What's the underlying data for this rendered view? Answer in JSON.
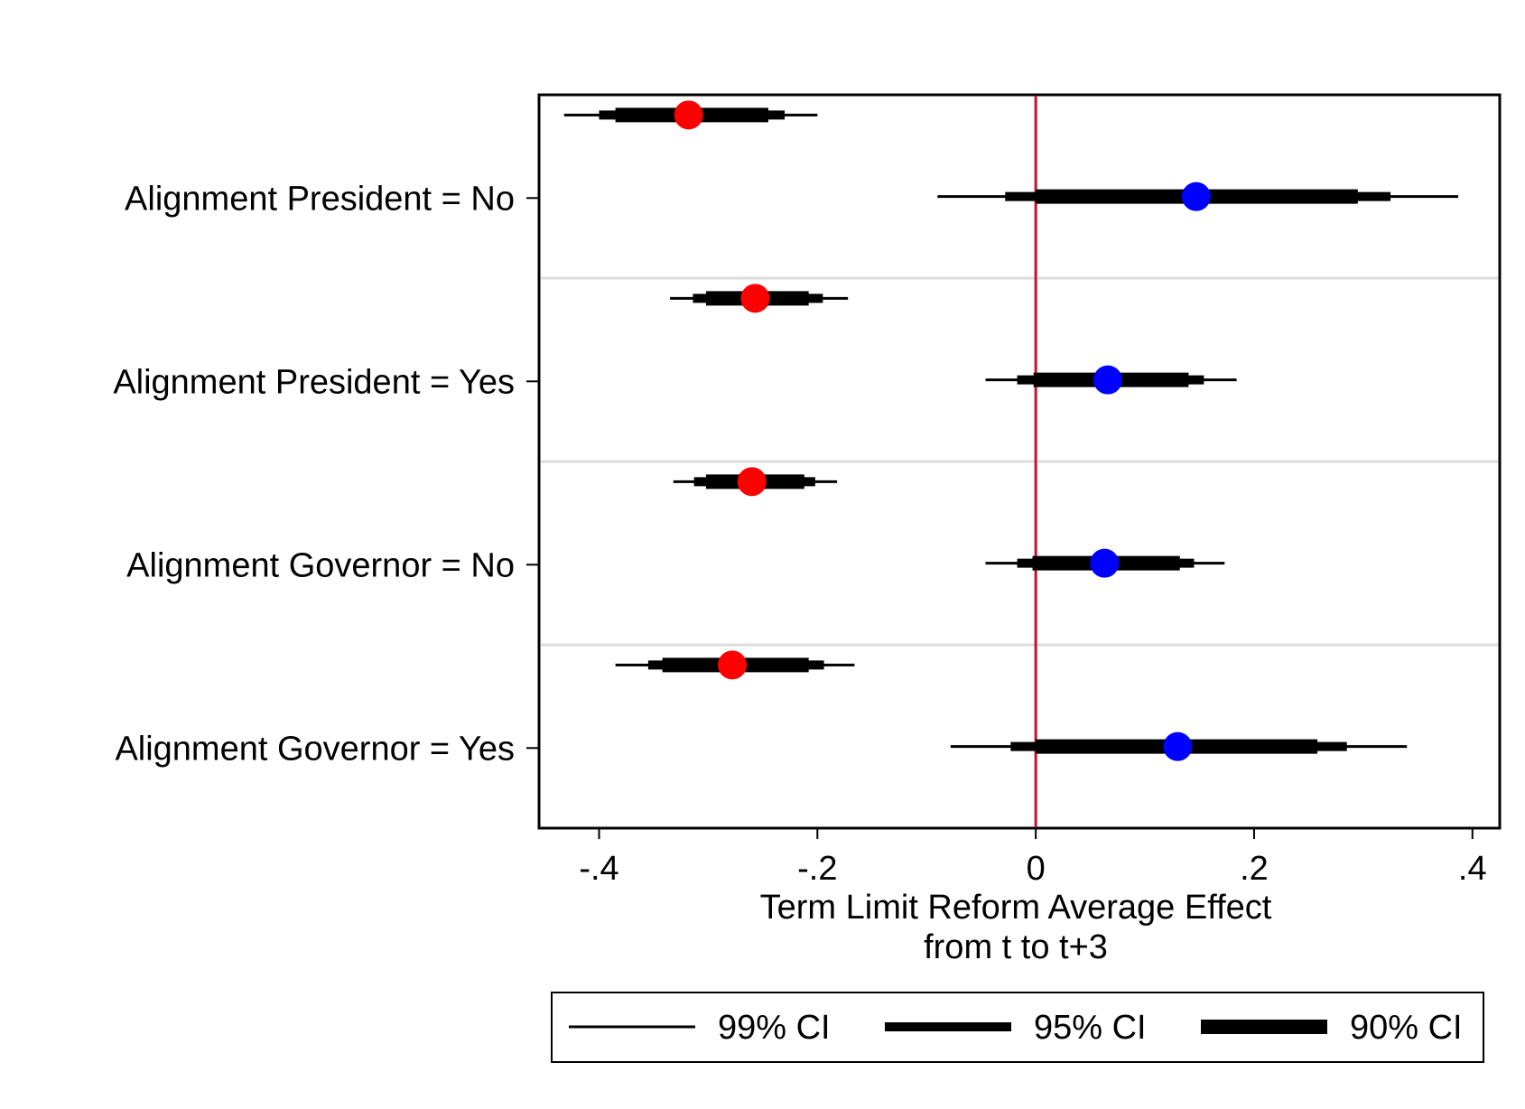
{
  "chart_data": {
    "type": "coefficient-plot",
    "xlabel": [
      "Term Limit Reform Average Effect",
      "from t to t+3"
    ],
    "xlim": [
      -0.455,
      0.425
    ],
    "xticks": [
      -0.4,
      -0.2,
      0,
      0.2,
      0.4
    ],
    "xtick_labels": [
      "-.4",
      "-.2",
      "0",
      ".2",
      ".4"
    ],
    "reference_line": {
      "x": 0,
      "color": "#c8102e"
    },
    "grid": "horizontal separators between groups",
    "groups": [
      {
        "label": "Alignment President = No",
        "estimates": [
          {
            "color": "#ff0000",
            "estimate": -0.318,
            "ci90": [
              -0.385,
              -0.245
            ],
            "ci95": [
              -0.4,
              -0.23
            ],
            "ci99": [
              -0.432,
              -0.2
            ]
          },
          {
            "color": "#0000ff",
            "estimate": 0.147,
            "ci90": [
              0.0,
              0.295
            ],
            "ci95": [
              -0.028,
              0.325
            ],
            "ci99": [
              -0.09,
              0.387
            ]
          }
        ]
      },
      {
        "label": "Alignment President = Yes",
        "estimates": [
          {
            "color": "#ff0000",
            "estimate": -0.257,
            "ci90": [
              -0.302,
              -0.208
            ],
            "ci95": [
              -0.314,
              -0.195
            ],
            "ci99": [
              -0.335,
              -0.172
            ]
          },
          {
            "color": "#0000ff",
            "estimate": 0.066,
            "ci90": [
              -0.002,
              0.14
            ],
            "ci95": [
              -0.017,
              0.154
            ],
            "ci99": [
              -0.046,
              0.184
            ]
          }
        ]
      },
      {
        "label": "Alignment Governor = No",
        "estimates": [
          {
            "color": "#ff0000",
            "estimate": -0.26,
            "ci90": [
              -0.302,
              -0.212
            ],
            "ci95": [
              -0.313,
              -0.202
            ],
            "ci99": [
              -0.332,
              -0.182
            ]
          },
          {
            "color": "#0000ff",
            "estimate": 0.063,
            "ci90": [
              -0.003,
              0.132
            ],
            "ci95": [
              -0.017,
              0.145
            ],
            "ci99": [
              -0.046,
              0.173
            ]
          }
        ]
      },
      {
        "label": "Alignment Governor = Yes",
        "estimates": [
          {
            "color": "#ff0000",
            "estimate": -0.278,
            "ci90": [
              -0.342,
              -0.208
            ],
            "ci95": [
              -0.355,
              -0.194
            ],
            "ci99": [
              -0.385,
              -0.166
            ]
          },
          {
            "color": "#0000ff",
            "estimate": 0.13,
            "ci90": [
              0.0,
              0.258
            ],
            "ci95": [
              -0.023,
              0.285
            ],
            "ci99": [
              -0.078,
              0.34
            ]
          }
        ]
      }
    ],
    "legend": {
      "placement": "bottom",
      "entries": [
        {
          "label": "99% CI",
          "style": "thin"
        },
        {
          "label": "95% CI",
          "style": "medium"
        },
        {
          "label": "90% CI",
          "style": "thick"
        }
      ]
    }
  }
}
